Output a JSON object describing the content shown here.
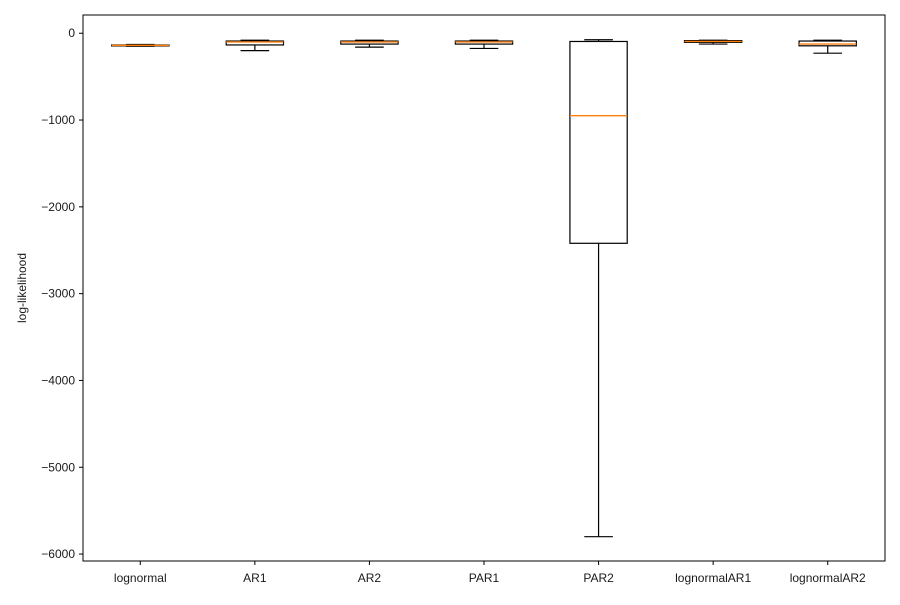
{
  "chart_data": {
    "type": "box",
    "title": "",
    "xlabel": "",
    "ylabel": "log-likelihood",
    "ylim": [
      -6080,
      210
    ],
    "yticks": [
      0,
      -1000,
      -2000,
      -3000,
      -4000,
      -5000,
      -6000
    ],
    "ytick_labels": [
      "0",
      "−1000",
      "−2000",
      "−3000",
      "−4000",
      "−5000",
      "−6000"
    ],
    "grid": false,
    "legend": "none",
    "box_color": "#000000",
    "median_color": "#ff7f0e",
    "categories": [
      "lognormal",
      "AR1",
      "AR2",
      "PAR1",
      "PAR2",
      "lognormalAR1",
      "lognormalAR2"
    ],
    "boxes": [
      {
        "label": "lognormal",
        "whisker_low": -150,
        "q1": -145,
        "median": -140,
        "q3": -135,
        "whisker_high": -130
      },
      {
        "label": "AR1",
        "whisker_low": -200,
        "q1": -135,
        "median": -100,
        "q3": -90,
        "whisker_high": -80
      },
      {
        "label": "AR2",
        "whisker_low": -160,
        "q1": -125,
        "median": -100,
        "q3": -90,
        "whisker_high": -80
      },
      {
        "label": "PAR1",
        "whisker_low": -175,
        "q1": -125,
        "median": -100,
        "q3": -90,
        "whisker_high": -80
      },
      {
        "label": "PAR2",
        "whisker_low": -5800,
        "q1": -2420,
        "median": -950,
        "q3": -95,
        "whisker_high": -75
      },
      {
        "label": "lognormalAR1",
        "whisker_low": -125,
        "q1": -105,
        "median": -95,
        "q3": -85,
        "whisker_high": -80
      },
      {
        "label": "lognormalAR2",
        "whisker_low": -230,
        "q1": -145,
        "median": -125,
        "q3": -90,
        "whisker_high": -80
      }
    ]
  }
}
